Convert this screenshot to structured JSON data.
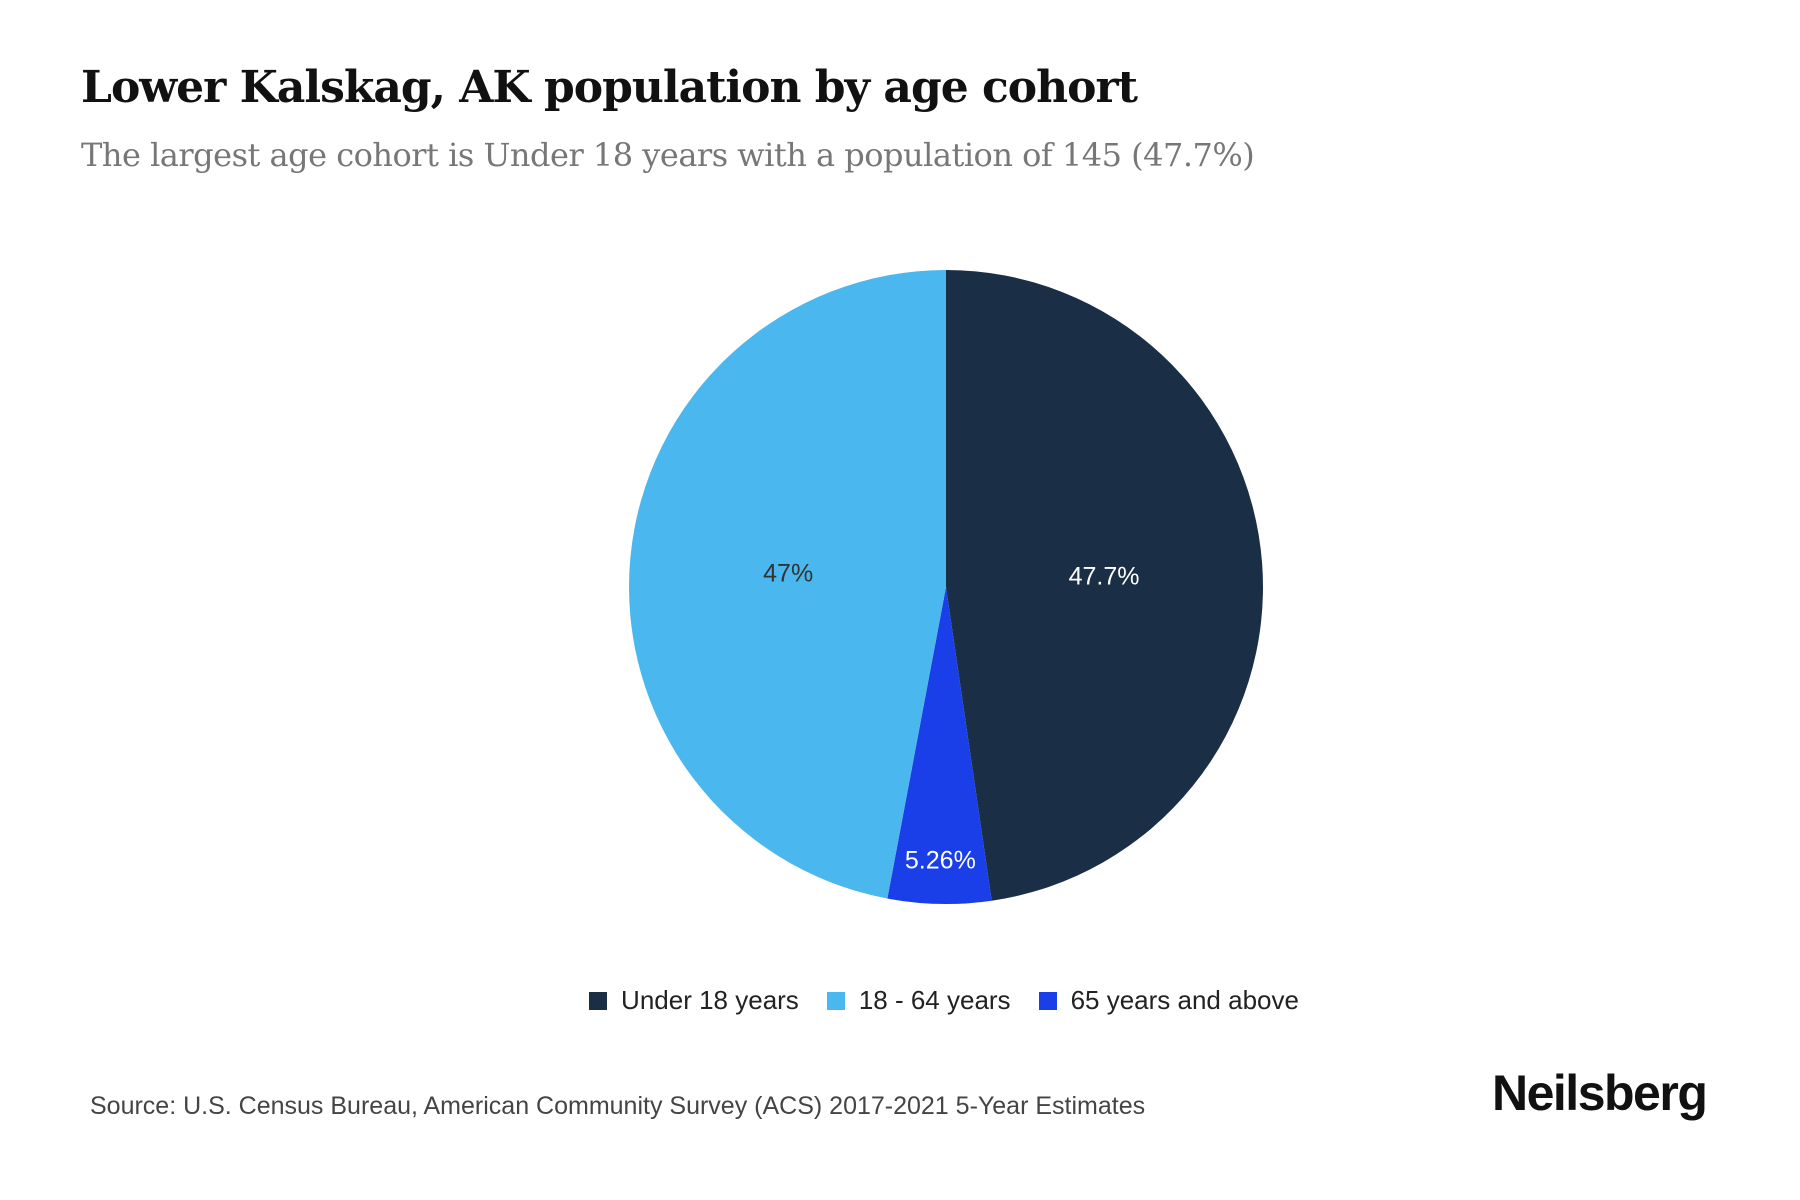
{
  "chart_data": {
    "type": "pie",
    "title": "Lower Kalskag, AK population by age cohort",
    "subtitle": "The largest age cohort is Under 18 years with a population of 145 (47.7%)",
    "slices": [
      {
        "label": "Under 18 years",
        "value": 145,
        "percent_label": "47.7%",
        "color": "#1a2e46",
        "label_color": "#ffffff"
      },
      {
        "label": "65 years and above",
        "value": 16,
        "percent_label": "5.26%",
        "color": "#1a3ee8",
        "label_color": "#ffffff"
      },
      {
        "label": "18 - 64 years",
        "value": 143,
        "percent_label": "47%",
        "color": "#4ab8ee",
        "label_color": "#333333"
      }
    ],
    "legend": [
      {
        "label": "Under 18 years",
        "color": "#1a2e46"
      },
      {
        "label": "18 - 64 years",
        "color": "#4ab8ee"
      },
      {
        "label": "65 years and above",
        "color": "#1a3ee8"
      }
    ],
    "legend_placement": "bottom"
  },
  "source": "Source: U.S. Census Bureau, American Community Survey (ACS) 2017-2021 5-Year Estimates",
  "brand": "Neilsberg"
}
